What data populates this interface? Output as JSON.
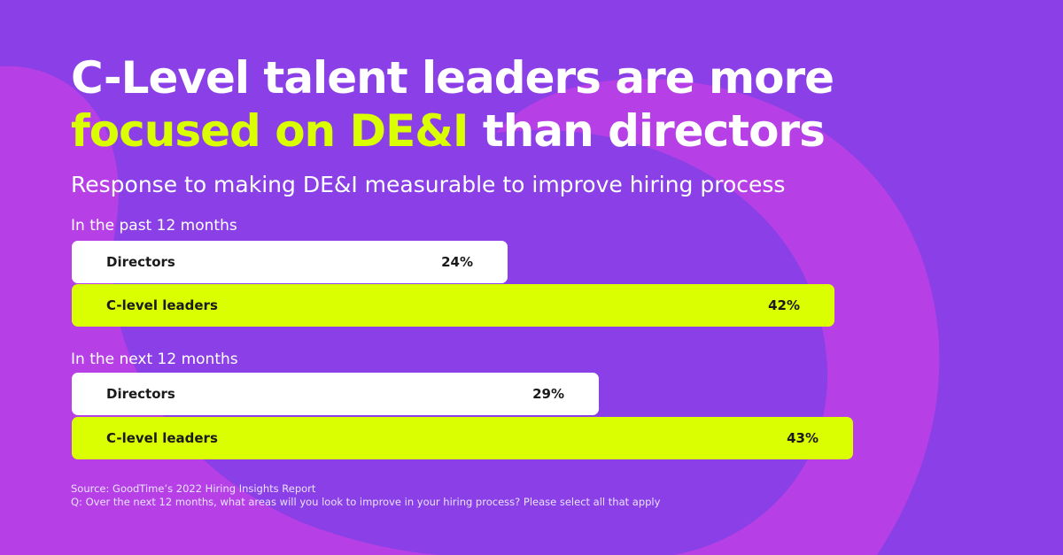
{
  "title": {
    "line1": "C-Level talent leaders are more",
    "highlight": "focused on DE&I",
    "rest": " than directors"
  },
  "subtitle": "Response to making DE&I measurable to improve hiring process",
  "colors": {
    "background": "#8b3fe6",
    "shape": "#b640e6",
    "accent": "#d9ff00",
    "directors_bar": "#ffffff",
    "clevel_bar": "#d9ff00"
  },
  "chart_data": {
    "type": "bar",
    "orientation": "horizontal",
    "groups": [
      {
        "label": "In the past 12 months",
        "bars": [
          {
            "name": "Directors",
            "value": 24,
            "label": "24%"
          },
          {
            "name": "C-level leaders",
            "value": 42,
            "label": "42%"
          }
        ]
      },
      {
        "label": "In the next 12 months",
        "bars": [
          {
            "name": "Directors",
            "value": 29,
            "label": "29%"
          },
          {
            "name": "C-level leaders",
            "value": 43,
            "label": "43%"
          }
        ]
      }
    ],
    "unit": "%"
  },
  "footer": {
    "source": "Source: GoodTime’s 2022 Hiring Insights Report",
    "question": "Q: Over the next 12 months, what areas will you look to improve in your hiring process? Please select all that apply"
  }
}
